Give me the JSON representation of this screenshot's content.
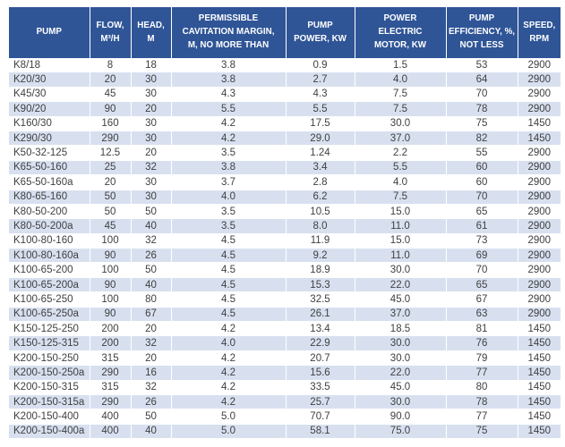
{
  "colors": {
    "header_bg": "#2F5597",
    "header_text": "#FFFFFF",
    "stripe_row_bg": "#D8E0F0",
    "plain_row_bg": "#FFFFFF",
    "cell_text": "#3F3F3F"
  },
  "table": {
    "columns": [
      {
        "key": "pump",
        "label": "PUMP",
        "label_lines": [
          "PUMP"
        ]
      },
      {
        "key": "flow",
        "label": "FLOW, M³/H",
        "label_lines": [
          "FLOW,",
          "M³/H"
        ]
      },
      {
        "key": "head",
        "label": "HEAD, M",
        "label_lines": [
          "HEAD,",
          "M"
        ]
      },
      {
        "key": "cavitation",
        "label": "PERMISSIBLE CAVITATION MARGIN, M, NO MORE THAN",
        "label_lines": [
          "PERMISSIBLE",
          "CAVITATION MARGIN,",
          "M, NO MORE THAN"
        ]
      },
      {
        "key": "pump-power",
        "label": "PUMP POWER, KW",
        "label_lines": [
          "PUMP",
          "POWER, KW"
        ]
      },
      {
        "key": "motor-power",
        "label": "POWER ELECTRIC MOTOR, KW",
        "label_lines": [
          "POWER",
          "ELECTRIC",
          "MOTOR, KW"
        ]
      },
      {
        "key": "efficiency",
        "label": "PUMP EFFICIENCY, %, NOT LESS",
        "label_lines": [
          "PUMP",
          "EFFICIENCY, %,",
          "NOT LESS"
        ]
      },
      {
        "key": "speed",
        "label": "SPEED, RPM",
        "label_lines": [
          "SPEED,",
          "RPM"
        ]
      }
    ],
    "rows": [
      [
        "K8/18",
        "8",
        "18",
        "3.8",
        "0.9",
        "1.5",
        "53",
        "2900"
      ],
      [
        "K20/30",
        "20",
        "30",
        "3.8",
        "2.7",
        "4.0",
        "64",
        "2900"
      ],
      [
        "K45/30",
        "45",
        "30",
        "4.3",
        "4.3",
        "7.5",
        "70",
        "2900"
      ],
      [
        "K90/20",
        "90",
        "20",
        "5.5",
        "5.5",
        "7.5",
        "78",
        "2900"
      ],
      [
        "K160/30",
        "160",
        "30",
        "4.2",
        "17.5",
        "30.0",
        "75",
        "1450"
      ],
      [
        "K290/30",
        "290",
        "30",
        "4.2",
        "29.0",
        "37.0",
        "82",
        "1450"
      ],
      [
        "K50-32-125",
        "12.5",
        "20",
        "3.5",
        "1.24",
        "2.2",
        "55",
        "2900"
      ],
      [
        "K65-50-160",
        "25",
        "32",
        "3.8",
        "3.4",
        "5.5",
        "60",
        "2900"
      ],
      [
        "K65-50-160a",
        "20",
        "30",
        "3.7",
        "2.8",
        "4.0",
        "60",
        "2900"
      ],
      [
        "K80-65-160",
        "50",
        "30",
        "4.0",
        "6.2",
        "7.5",
        "70",
        "2900"
      ],
      [
        "K80-50-200",
        "50",
        "50",
        "3.5",
        "10.5",
        "15.0",
        "65",
        "2900"
      ],
      [
        "K80-50-200a",
        "45",
        "40",
        "3.5",
        "8.0",
        "11.0",
        "61",
        "2900"
      ],
      [
        "K100-80-160",
        "100",
        "32",
        "4.5",
        "11.9",
        "15.0",
        "73",
        "2900"
      ],
      [
        "K100-80-160a",
        "90",
        "26",
        "4.5",
        "9.2",
        "11.0",
        "69",
        "2900"
      ],
      [
        "K100-65-200",
        "100",
        "50",
        "4.5",
        "18.9",
        "30.0",
        "70",
        "2900"
      ],
      [
        "K100-65-200a",
        "90",
        "40",
        "4.5",
        "15.3",
        "22.0",
        "65",
        "2900"
      ],
      [
        "K100-65-250",
        "100",
        "80",
        "4.5",
        "32.5",
        "45.0",
        "67",
        "2900"
      ],
      [
        "K100-65-250a",
        "90",
        "67",
        "4.5",
        "26.1",
        "37.0",
        "63",
        "2900"
      ],
      [
        "K150-125-250",
        "200",
        "20",
        "4.2",
        "13.4",
        "18.5",
        "81",
        "1450"
      ],
      [
        "K150-125-315",
        "200",
        "32",
        "4.0",
        "22.9",
        "30.0",
        "76",
        "1450"
      ],
      [
        "K200-150-250",
        "315",
        "20",
        "4.2",
        "20.7",
        "30.0",
        "79",
        "1450"
      ],
      [
        "K200-150-250a",
        "290",
        "16",
        "4.2",
        "15.6",
        "22.0",
        "77",
        "1450"
      ],
      [
        "K200-150-315",
        "315",
        "32",
        "4.2",
        "33.5",
        "45.0",
        "80",
        "1450"
      ],
      [
        "K200-150-315a",
        "290",
        "26",
        "4.2",
        "25.7",
        "30.0",
        "78",
        "1450"
      ],
      [
        "K200-150-400",
        "400",
        "50",
        "5.0",
        "70.7",
        "90.0",
        "77",
        "1450"
      ],
      [
        "K200-150-400a",
        "400",
        "40",
        "5.0",
        "58.1",
        "75.0",
        "75",
        "1450"
      ]
    ]
  }
}
